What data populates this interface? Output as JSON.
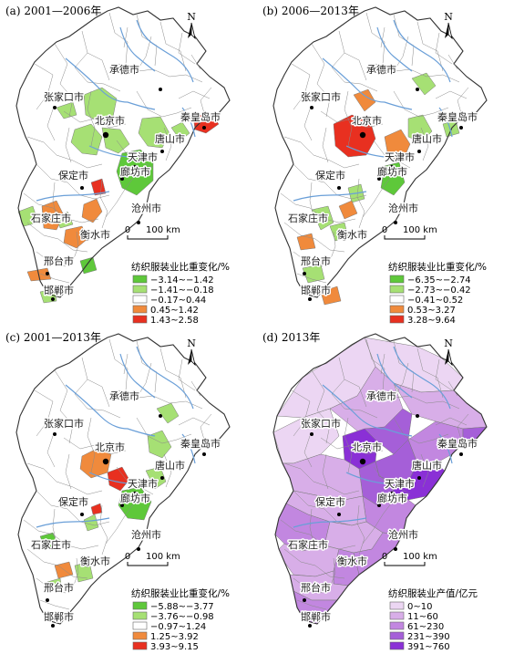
{
  "panels": [
    {
      "id": "a",
      "title": "(a) 2001—2006年",
      "legend_title": "纺织服装业比重变化/%",
      "classes": [
        {
          "label": "−3.14~−1.42",
          "color": "#5ec83a"
        },
        {
          "label": "−1.41~−0.18",
          "color": "#a6e074"
        },
        {
          "label": "−0.17~0.44",
          "color": "#ffffff"
        },
        {
          "label": "0.45~1.42",
          "color": "#f08a3c"
        },
        {
          "label": "1.43~2.58",
          "color": "#e83020"
        }
      ]
    },
    {
      "id": "b",
      "title": "(b) 2006—2013年",
      "legend_title": "纺织服装业比重变化/%",
      "classes": [
        {
          "label": "−6.35~−2.74",
          "color": "#5ec83a"
        },
        {
          "label": "−2.73~−0.42",
          "color": "#a6e074"
        },
        {
          "label": "−0.41~0.52",
          "color": "#ffffff"
        },
        {
          "label": "0.53~3.27",
          "color": "#f08a3c"
        },
        {
          "label": "3.28~9.64",
          "color": "#e83020"
        }
      ]
    },
    {
      "id": "c",
      "title": "(c) 2001—2013年",
      "legend_title": "纺织服装业比重变化/%",
      "classes": [
        {
          "label": "−5.88~−3.77",
          "color": "#5ec83a"
        },
        {
          "label": "−3.76~−0.98",
          "color": "#a6e074"
        },
        {
          "label": "−0.97~1.24",
          "color": "#ffffff"
        },
        {
          "label": "1.25~3.92",
          "color": "#f08a3c"
        },
        {
          "label": "3.93~9.15",
          "color": "#e83020"
        }
      ]
    },
    {
      "id": "d",
      "title": "(d) 2013年",
      "legend_title": "纺织服装业产值/亿元",
      "classes": [
        {
          "label": "0~10",
          "color": "#ecd6f3"
        },
        {
          "label": "11~60",
          "color": "#d8aee8"
        },
        {
          "label": "61~230",
          "color": "#c287e0"
        },
        {
          "label": "231~390",
          "color": "#a55fd8"
        },
        {
          "label": "391~760",
          "color": "#8a30d6"
        }
      ]
    }
  ],
  "cities": [
    "承德市",
    "张家口市",
    "北京市",
    "秦皇岛市",
    "唐山市",
    "天津市",
    "廊坊市",
    "保定市",
    "沧州市",
    "石家庄市",
    "衡水市",
    "邢台市",
    "邯郸市"
  ],
  "scale_bar": {
    "zero": "0",
    "distance": "100 km"
  },
  "north_label": "N"
}
